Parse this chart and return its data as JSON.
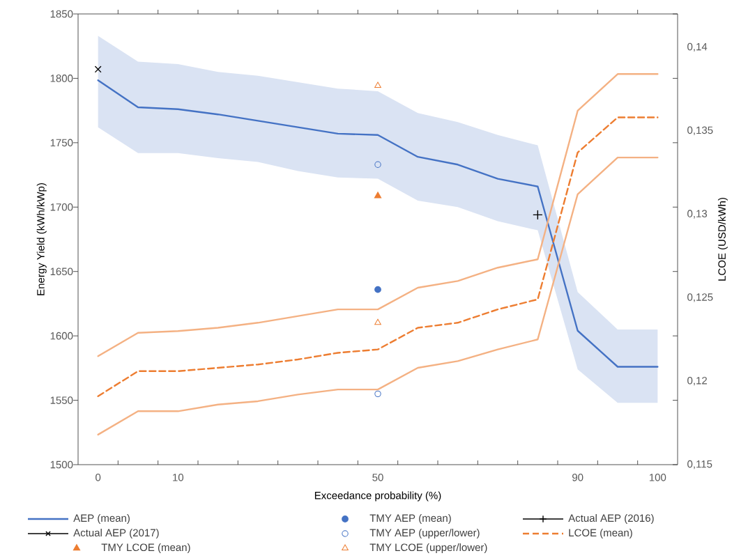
{
  "chart_data": {
    "type": "line",
    "xlabel": "Exceedance probability (%)",
    "ylabel": "Energy Yield (kWh/kWp)",
    "y2label": "LCOE (USD/kWh)",
    "categories": [
      "0",
      null,
      "10",
      null,
      null,
      null,
      null,
      "50",
      null,
      null,
      null,
      null,
      "90",
      null,
      "100"
    ],
    "ylim": [
      1500,
      1850
    ],
    "yticks": [
      1500,
      1550,
      1600,
      1650,
      1700,
      1750,
      1800,
      1850
    ],
    "y2lim": [
      0.115,
      0.142
    ],
    "y2ticks": [
      {
        "value": 0.115,
        "label": "0,115"
      },
      {
        "value": 0.12,
        "label": "0,12"
      },
      {
        "value": 0.125,
        "label": "0,125"
      },
      {
        "value": 0.13,
        "label": "0,13"
      },
      {
        "value": 0.135,
        "label": "0,135"
      },
      {
        "value": 0.14,
        "label": "0,14"
      }
    ],
    "legend": "bottom",
    "grid": false,
    "series": [
      {
        "name": "AEP (mean)",
        "color": "#4472c4",
        "marker": "none",
        "values": [
          1798.5,
          1777.5,
          1776,
          1772,
          1767,
          1762,
          1757,
          1756,
          1739,
          1733,
          1722,
          1716,
          1604,
          1576,
          1576
        ],
        "lower": [
          1762,
          1742,
          1742,
          1738,
          1735,
          1728,
          1723,
          1722,
          1705,
          1700,
          1689,
          1682,
          1574,
          1548,
          1548
        ],
        "upper": [
          1833,
          1813,
          1811,
          1805,
          1802,
          1797,
          1792,
          1790,
          1773,
          1766,
          1756,
          1748,
          1634,
          1605,
          1605
        ]
      },
      {
        "name": "TMY AEP (mean)",
        "type": "scatter",
        "color": "#4472c4",
        "marker": "circle",
        "values": [
          null,
          null,
          null,
          null,
          null,
          null,
          null,
          1636,
          null,
          null,
          null,
          null,
          null,
          null,
          null
        ]
      },
      {
        "name": "Actual AEP (2016)",
        "color": "#000000",
        "marker": "plus",
        "values": [
          null,
          null,
          null,
          null,
          null,
          null,
          null,
          null,
          null,
          null,
          null,
          1694,
          null,
          null,
          null
        ]
      },
      {
        "name": "Actual AEP (2017)",
        "color": "#000000",
        "marker": "cross",
        "values": [
          1807,
          null,
          null,
          null,
          null,
          null,
          null,
          null,
          null,
          null,
          null,
          null,
          null,
          null,
          null
        ]
      },
      {
        "name": "TMY AEP (upper/lower)",
        "type": "scatter",
        "color": "#4472c4",
        "marker": "circle-open",
        "values": [
          null,
          null,
          null,
          null,
          null,
          null,
          null,
          1733,
          null,
          null,
          null,
          null,
          null,
          null,
          null
        ]
      },
      {
        "name": "LCOE (mean)",
        "axis": "y2",
        "color": "#ed7d31",
        "line_style": "dashed",
        "marker": "none",
        "values": [
          0.1191,
          0.1206,
          0.1206,
          0.1208,
          0.121,
          0.1213,
          0.1217,
          0.1219,
          0.1232,
          0.1235,
          0.1243,
          0.1249,
          0.1337,
          0.1358,
          0.1358
        ]
      },
      {
        "name": "TMY LCOE (mean)",
        "type": "scatter",
        "axis": "y2",
        "color": "#ed7d31",
        "marker": "triangle",
        "values": [
          null,
          null,
          null,
          null,
          null,
          null,
          null,
          0.1311,
          null,
          null,
          null,
          null,
          null,
          null,
          null
        ]
      },
      {
        "name": "TMY LCOE (upper/lower)",
        "type": "scatter",
        "axis": "y2",
        "color": "#ed7d31",
        "marker": "triangle-open",
        "values": [
          null,
          null,
          null,
          null,
          null,
          null,
          null,
          0.1377,
          null,
          null,
          null,
          null,
          null,
          null,
          null
        ]
      },
      {
        "type": "scatter",
        "color": "#4472c4",
        "marker": "circle-open",
        "values": [
          null,
          null,
          null,
          null,
          null,
          null,
          null,
          1555,
          null,
          null,
          null,
          null,
          null,
          null,
          null
        ]
      },
      {
        "type": "scatter",
        "axis": "y2",
        "color": "#ed7d31",
        "marker": "triangle-open",
        "values": [
          null,
          null,
          null,
          null,
          null,
          null,
          null,
          0.1235,
          null,
          null,
          null,
          null,
          null,
          null,
          null
        ]
      },
      {
        "axis": "y2",
        "color": "#f4b183",
        "marker": "none",
        "values": [
          0.1215,
          0.1229,
          0.123,
          0.1232,
          0.1235,
          0.1239,
          0.1243,
          0.1243,
          0.1256,
          0.126,
          0.1268,
          0.1273,
          0.1362,
          0.1384,
          0.1384
        ]
      },
      {
        "axis": "y2",
        "color": "#f4b183",
        "marker": "none",
        "values": [
          0.1168,
          0.1182,
          0.1182,
          0.1186,
          0.1188,
          0.1192,
          0.1195,
          0.1195,
          0.1208,
          0.1212,
          0.1219,
          0.1225,
          0.1312,
          0.1334,
          0.1334
        ]
      }
    ]
  }
}
